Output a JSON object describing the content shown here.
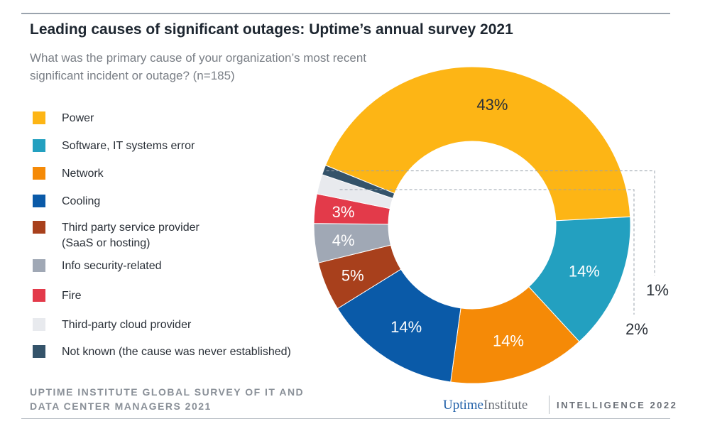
{
  "chart_data": {
    "type": "pie",
    "donut": true,
    "title": "Leading causes of significant outages: Uptime’s annual survey 2021",
    "subtitle": "What was the primary cause of your organization’s most recent significant incident or outage? (n=185)",
    "legend_position": "left",
    "slices": [
      {
        "name": "Power",
        "value": 43,
        "label": "43%",
        "color": "#fdb515"
      },
      {
        "name": "Software, IT systems error",
        "value": 14,
        "label": "14%",
        "color": "#23a0c0"
      },
      {
        "name": "Network",
        "value": 14,
        "label": "14%",
        "color": "#f58a07"
      },
      {
        "name": "Cooling",
        "value": 14,
        "label": "14%",
        "color": "#0a5aa8"
      },
      {
        "name": "Third party service provider (SaaS or hosting)",
        "value": 5,
        "label": "5%",
        "color": "#a8401c"
      },
      {
        "name": "Info security-related",
        "value": 4,
        "label": "4%",
        "color": "#a0a8b5"
      },
      {
        "name": "Fire",
        "value": 3,
        "label": "3%",
        "color": "#e33a4a"
      },
      {
        "name": "Third-party cloud provider",
        "value": 2,
        "label": "2%",
        "color": "#e8eaee"
      },
      {
        "name": "Not known (the cause was never established)",
        "value": 1,
        "label": "1%",
        "color": "#34536a"
      }
    ]
  },
  "legend_lines": [
    "Power",
    "Software, IT systems error",
    "Network",
    "Cooling",
    "Third party service provider\n(SaaS or hosting)",
    "Info security-related",
    "Fire",
    "Third-party cloud provider",
    "Not known (the cause was never established)"
  ],
  "footer": {
    "source": "UPTIME INSTITUTE GLOBAL SURVEY OF IT AND DATA CENTER MANAGERS 2021",
    "logo_uptime": "Uptime",
    "logo_institute": "Institute",
    "intelligence": "INTELLIGENCE 2022"
  }
}
